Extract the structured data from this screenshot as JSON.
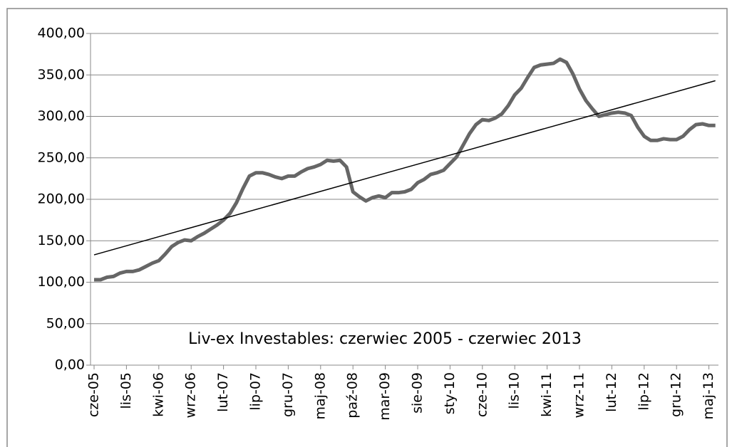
{
  "chart_data": {
    "type": "line",
    "annotation": "Liv-ex Investables: czerwiec 2005 - czerwiec 2013",
    "categories": [
      "cze-05",
      null,
      null,
      null,
      null,
      "lis-05",
      null,
      null,
      null,
      null,
      "kwi-06",
      null,
      null,
      null,
      null,
      "wrz-06",
      null,
      null,
      null,
      null,
      "lut-07",
      null,
      null,
      null,
      null,
      "lip-07",
      null,
      null,
      null,
      null,
      "gru-07",
      null,
      null,
      null,
      null,
      "maj-08",
      null,
      null,
      null,
      null,
      "paź-08",
      null,
      null,
      null,
      null,
      "mar-09",
      null,
      null,
      null,
      null,
      "sie-09",
      null,
      null,
      null,
      null,
      "sty-10",
      null,
      null,
      null,
      null,
      "cze-10",
      null,
      null,
      null,
      null,
      "lis-10",
      null,
      null,
      null,
      null,
      "kwi-11",
      null,
      null,
      null,
      null,
      "wrz-11",
      null,
      null,
      null,
      null,
      "lut-12",
      null,
      null,
      null,
      null,
      "lip-12",
      null,
      null,
      null,
      null,
      "gru-12",
      null,
      null,
      null,
      null,
      "maj-13",
      null
    ],
    "series": [
      {
        "color": "#666666",
        "values": [
          103,
          103,
          106,
          107,
          111,
          113,
          113,
          115,
          119,
          123,
          126,
          134,
          143,
          148,
          151,
          150,
          155,
          159,
          164,
          169,
          175,
          183,
          196,
          213,
          228,
          232,
          232,
          230,
          227,
          225,
          228,
          228,
          233,
          237,
          239,
          242,
          247,
          246,
          247,
          239,
          209,
          203,
          198,
          202,
          204,
          202,
          208,
          208,
          209,
          212,
          220,
          224,
          230,
          232,
          235,
          243,
          251,
          265,
          279,
          290,
          296,
          295,
          298,
          303,
          313,
          326,
          334,
          347,
          359,
          362,
          363,
          364,
          369,
          365,
          351,
          333,
          319,
          309,
          300,
          302,
          304,
          305,
          304,
          301,
          287,
          276,
          271,
          271,
          273,
          272,
          272,
          276,
          284,
          290,
          291,
          289,
          289
        ]
      }
    ],
    "trend": {
      "color": "#000000",
      "start": 133,
      "end": 343
    },
    "ylim": [
      0,
      400
    ],
    "yticks": [
      {
        "value": 0,
        "label": "0,00"
      },
      {
        "value": 50,
        "label": "50,00"
      },
      {
        "value": 100,
        "label": "100,00"
      },
      {
        "value": 150,
        "label": "150,00"
      },
      {
        "value": 200,
        "label": "200,00"
      },
      {
        "value": 250,
        "label": "250,00"
      },
      {
        "value": 300,
        "label": "300,00"
      },
      {
        "value": 350,
        "label": "350,00"
      },
      {
        "value": 400,
        "label": "400,00"
      }
    ],
    "grid": true
  }
}
